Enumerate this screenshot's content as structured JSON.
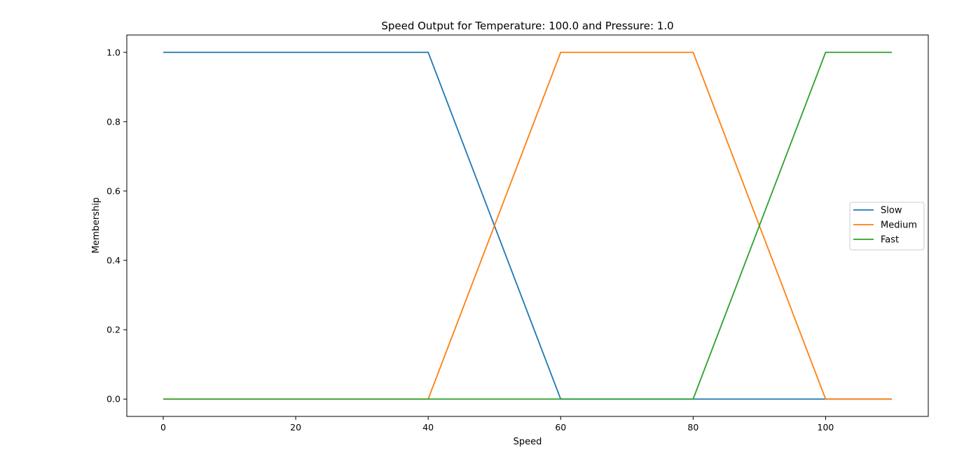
{
  "chart_data": {
    "type": "line",
    "title": "Speed Output for Temperature: 100.0 and Pressure: 1.0",
    "xlabel": "Speed",
    "ylabel": "Membership",
    "xlim": [
      -5.5,
      115.5
    ],
    "ylim": [
      -0.05,
      1.05
    ],
    "xticks": [
      0,
      20,
      40,
      60,
      80,
      100
    ],
    "xtick_labels": [
      "0",
      "20",
      "40",
      "60",
      "80",
      "100"
    ],
    "yticks": [
      0.0,
      0.2,
      0.4,
      0.6,
      0.8,
      1.0
    ],
    "ytick_labels": [
      "0.0",
      "0.2",
      "0.4",
      "0.6",
      "0.8",
      "1.0"
    ],
    "grid": false,
    "legend": {
      "placement": "center-right"
    },
    "series": [
      {
        "name": "Slow",
        "color": "#1f77b4",
        "x": [
          0,
          40,
          60,
          110
        ],
        "y": [
          1,
          1,
          0,
          0
        ]
      },
      {
        "name": "Medium",
        "color": "#ff7f0e",
        "x": [
          0,
          40,
          60,
          80,
          100,
          110
        ],
        "y": [
          0,
          0,
          1,
          1,
          0,
          0
        ]
      },
      {
        "name": "Fast",
        "color": "#2ca02c",
        "x": [
          0,
          80,
          100,
          110
        ],
        "y": [
          0,
          0,
          1,
          1
        ]
      }
    ]
  }
}
